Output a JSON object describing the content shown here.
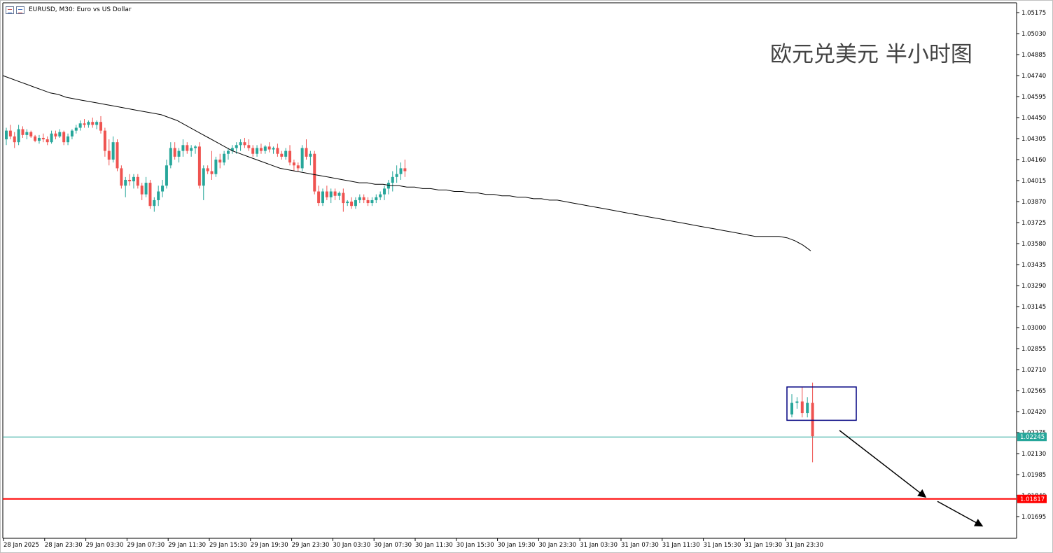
{
  "header": {
    "symbol_text": "EURUSD, M30:  Euro vs US Dollar"
  },
  "annotation": {
    "title": "欧元兑美元 半小时图"
  },
  "chart_data": {
    "type": "candlestick",
    "symbol": "EURUSD",
    "timeframe": "M30",
    "description": "Euro vs US Dollar",
    "colors": {
      "bull": "#26a69a",
      "bear": "#ef5350",
      "moving_average": "#000000",
      "current_price_line": "#26a69a",
      "support_line": "#ff0000",
      "box": "#000080",
      "arrows": "#000000",
      "grid": "none"
    },
    "y_axis": {
      "range": [
        1.0155,
        1.0525
      ],
      "ticks": [
        "1.05175",
        "1.05030",
        "1.04885",
        "1.04740",
        "1.04595",
        "1.04450",
        "1.04305",
        "1.04160",
        "1.04015",
        "1.03870",
        "1.03725",
        "1.03580",
        "1.03435",
        "1.03290",
        "1.03145",
        "1.03000",
        "1.02855",
        "1.02710",
        "1.02565",
        "1.02420",
        "1.02275",
        "1.02130",
        "1.01985",
        "1.01840",
        "1.01695"
      ]
    },
    "x_axis": {
      "ticks": [
        "28 Jan 2025",
        "28 Jan 23:30",
        "29 Jan 03:30",
        "29 Jan 07:30",
        "29 Jan 11:30",
        "29 Jan 15:30",
        "29 Jan 19:30",
        "29 Jan 23:30",
        "30 Jan 03:30",
        "30 Jan 07:30",
        "30 Jan 11:30",
        "30 Jan 15:30",
        "30 Jan 19:30",
        "30 Jan 23:30",
        "31 Jan 03:30",
        "31 Jan 07:30",
        "31 Jan 11:30",
        "31 Jan 15:30",
        "31 Jan 19:30",
        "31 Jan 23:30"
      ]
    },
    "price_labels": {
      "current": "1.02245",
      "support": "1.01817"
    },
    "current_price": 1.02245,
    "support_level": 1.01817,
    "moving_average": [
      1.0474,
      1.0472,
      1.047,
      1.0468,
      1.0466,
      1.0464,
      1.0462,
      1.0461,
      1.0459,
      1.0458,
      1.0457,
      1.0456,
      1.0455,
      1.0454,
      1.0453,
      1.0452,
      1.0451,
      1.045,
      1.0449,
      1.0448,
      1.0447,
      1.0445,
      1.0443,
      1.044,
      1.0437,
      1.0434,
      1.0431,
      1.0428,
      1.0425,
      1.0422,
      1.042,
      1.0418,
      1.0416,
      1.0414,
      1.0412,
      1.041,
      1.0409,
      1.0408,
      1.0407,
      1.0406,
      1.0405,
      1.0404,
      1.0403,
      1.0402,
      1.0401,
      1.04,
      1.04,
      1.0399,
      1.0399,
      1.0398,
      1.0398,
      1.0397,
      1.0397,
      1.0396,
      1.0396,
      1.0395,
      1.0395,
      1.0394,
      1.0394,
      1.0393,
      1.0393,
      1.0392,
      1.0392,
      1.0391,
      1.0391,
      1.039,
      1.039,
      1.0389,
      1.0389,
      1.0388,
      1.0388,
      1.0387,
      1.0386,
      1.0385,
      1.0384,
      1.0383,
      1.0382,
      1.0381,
      1.038,
      1.0379,
      1.0378,
      1.0377,
      1.0376,
      1.0375,
      1.0374,
      1.0373,
      1.0372,
      1.0371,
      1.037,
      1.0369,
      1.0368,
      1.0367,
      1.0366,
      1.0365,
      1.0364,
      1.0363,
      1.0363,
      1.0363,
      1.0363,
      1.0362,
      1.036,
      1.0357,
      1.0353
    ],
    "candles": [
      {
        "o": 1.043,
        "h": 1.0438,
        "l": 1.0426,
        "c": 1.0436
      },
      {
        "o": 1.0436,
        "h": 1.044,
        "l": 1.043,
        "c": 1.0432
      },
      {
        "o": 1.0432,
        "h": 1.0435,
        "l": 1.0424,
        "c": 1.0428
      },
      {
        "o": 1.0428,
        "h": 1.044,
        "l": 1.0426,
        "c": 1.0437
      },
      {
        "o": 1.0437,
        "h": 1.0439,
        "l": 1.0431,
        "c": 1.0433
      },
      {
        "o": 1.0433,
        "h": 1.0437,
        "l": 1.043,
        "c": 1.0435
      },
      {
        "o": 1.0435,
        "h": 1.0436,
        "l": 1.0431,
        "c": 1.0432
      },
      {
        "o": 1.0432,
        "h": 1.0433,
        "l": 1.0428,
        "c": 1.0429
      },
      {
        "o": 1.0429,
        "h": 1.0433,
        "l": 1.0427,
        "c": 1.0431
      },
      {
        "o": 1.0431,
        "h": 1.0434,
        "l": 1.0428,
        "c": 1.043
      },
      {
        "o": 1.043,
        "h": 1.0432,
        "l": 1.0426,
        "c": 1.0428
      },
      {
        "o": 1.0428,
        "h": 1.0436,
        "l": 1.0427,
        "c": 1.0434
      },
      {
        "o": 1.0434,
        "h": 1.0436,
        "l": 1.043,
        "c": 1.0432
      },
      {
        "o": 1.0432,
        "h": 1.0437,
        "l": 1.0431,
        "c": 1.0435
      },
      {
        "o": 1.0435,
        "h": 1.0436,
        "l": 1.0426,
        "c": 1.0428
      },
      {
        "o": 1.0428,
        "h": 1.0434,
        "l": 1.0426,
        "c": 1.0432
      },
      {
        "o": 1.0432,
        "h": 1.0437,
        "l": 1.043,
        "c": 1.0436
      },
      {
        "o": 1.0436,
        "h": 1.044,
        "l": 1.0434,
        "c": 1.0438
      },
      {
        "o": 1.0438,
        "h": 1.0443,
        "l": 1.0436,
        "c": 1.0441
      },
      {
        "o": 1.0441,
        "h": 1.0444,
        "l": 1.0438,
        "c": 1.044
      },
      {
        "o": 1.044,
        "h": 1.0443,
        "l": 1.0438,
        "c": 1.0442
      },
      {
        "o": 1.0442,
        "h": 1.0445,
        "l": 1.0438,
        "c": 1.044
      },
      {
        "o": 1.044,
        "h": 1.0443,
        "l": 1.0437,
        "c": 1.0442
      },
      {
        "o": 1.0442,
        "h": 1.0446,
        "l": 1.0434,
        "c": 1.0436
      },
      {
        "o": 1.0436,
        "h": 1.0438,
        "l": 1.0418,
        "c": 1.0422
      },
      {
        "o": 1.0422,
        "h": 1.043,
        "l": 1.0412,
        "c": 1.0416
      },
      {
        "o": 1.0416,
        "h": 1.0432,
        "l": 1.0414,
        "c": 1.0428
      },
      {
        "o": 1.0428,
        "h": 1.043,
        "l": 1.0408,
        "c": 1.041
      },
      {
        "o": 1.041,
        "h": 1.0412,
        "l": 1.0396,
        "c": 1.0398
      },
      {
        "o": 1.0398,
        "h": 1.0404,
        "l": 1.039,
        "c": 1.0402
      },
      {
        "o": 1.0402,
        "h": 1.0406,
        "l": 1.0398,
        "c": 1.0401
      },
      {
        "o": 1.0401,
        "h": 1.0406,
        "l": 1.0396,
        "c": 1.0404
      },
      {
        "o": 1.0404,
        "h": 1.0406,
        "l": 1.0396,
        "c": 1.0398
      },
      {
        "o": 1.0398,
        "h": 1.04,
        "l": 1.0388,
        "c": 1.0392
      },
      {
        "o": 1.0392,
        "h": 1.0404,
        "l": 1.039,
        "c": 1.04
      },
      {
        "o": 1.04,
        "h": 1.0402,
        "l": 1.0382,
        "c": 1.0384
      },
      {
        "o": 1.0384,
        "h": 1.039,
        "l": 1.038,
        "c": 1.0388
      },
      {
        "o": 1.0388,
        "h": 1.0398,
        "l": 1.0384,
        "c": 1.0394
      },
      {
        "o": 1.0394,
        "h": 1.0402,
        "l": 1.039,
        "c": 1.0398
      },
      {
        "o": 1.0398,
        "h": 1.0416,
        "l": 1.0396,
        "c": 1.0412
      },
      {
        "o": 1.0412,
        "h": 1.0428,
        "l": 1.041,
        "c": 1.0424
      },
      {
        "o": 1.0424,
        "h": 1.0428,
        "l": 1.0416,
        "c": 1.0418
      },
      {
        "o": 1.0418,
        "h": 1.0424,
        "l": 1.0414,
        "c": 1.0422
      },
      {
        "o": 1.0422,
        "h": 1.043,
        "l": 1.0418,
        "c": 1.0426
      },
      {
        "o": 1.0426,
        "h": 1.0428,
        "l": 1.042,
        "c": 1.0422
      },
      {
        "o": 1.0422,
        "h": 1.0426,
        "l": 1.0418,
        "c": 1.0424
      },
      {
        "o": 1.0424,
        "h": 1.0426,
        "l": 1.042,
        "c": 1.0425
      },
      {
        "o": 1.0425,
        "h": 1.0428,
        "l": 1.0396,
        "c": 1.0398
      },
      {
        "o": 1.0398,
        "h": 1.0412,
        "l": 1.0388,
        "c": 1.041
      },
      {
        "o": 1.041,
        "h": 1.0412,
        "l": 1.0406,
        "c": 1.0408
      },
      {
        "o": 1.0408,
        "h": 1.0422,
        "l": 1.0402,
        "c": 1.0406
      },
      {
        "o": 1.0406,
        "h": 1.0418,
        "l": 1.0404,
        "c": 1.0416
      },
      {
        "o": 1.0416,
        "h": 1.042,
        "l": 1.041,
        "c": 1.0414
      },
      {
        "o": 1.0414,
        "h": 1.0422,
        "l": 1.0412,
        "c": 1.042
      },
      {
        "o": 1.042,
        "h": 1.0424,
        "l": 1.0416,
        "c": 1.0422
      },
      {
        "o": 1.0422,
        "h": 1.0426,
        "l": 1.042,
        "c": 1.0424
      },
      {
        "o": 1.0424,
        "h": 1.0428,
        "l": 1.042,
        "c": 1.0426
      },
      {
        "o": 1.0426,
        "h": 1.043,
        "l": 1.0422,
        "c": 1.0428
      },
      {
        "o": 1.0428,
        "h": 1.0431,
        "l": 1.0424,
        "c": 1.0426
      },
      {
        "o": 1.0426,
        "h": 1.043,
        "l": 1.0422,
        "c": 1.0424
      },
      {
        "o": 1.0424,
        "h": 1.0426,
        "l": 1.0418,
        "c": 1.042
      },
      {
        "o": 1.042,
        "h": 1.0426,
        "l": 1.0418,
        "c": 1.0424
      },
      {
        "o": 1.0424,
        "h": 1.0427,
        "l": 1.042,
        "c": 1.0422
      },
      {
        "o": 1.0422,
        "h": 1.0426,
        "l": 1.042,
        "c": 1.0425
      },
      {
        "o": 1.0425,
        "h": 1.0428,
        "l": 1.0421,
        "c": 1.0423
      },
      {
        "o": 1.0423,
        "h": 1.0425,
        "l": 1.042,
        "c": 1.0424
      },
      {
        "o": 1.0424,
        "h": 1.0427,
        "l": 1.0418,
        "c": 1.042
      },
      {
        "o": 1.042,
        "h": 1.0422,
        "l": 1.0416,
        "c": 1.0418
      },
      {
        "o": 1.0418,
        "h": 1.0424,
        "l": 1.0416,
        "c": 1.0422
      },
      {
        "o": 1.0422,
        "h": 1.0426,
        "l": 1.0412,
        "c": 1.0414
      },
      {
        "o": 1.0414,
        "h": 1.0416,
        "l": 1.0408,
        "c": 1.0412
      },
      {
        "o": 1.0412,
        "h": 1.0414,
        "l": 1.0408,
        "c": 1.041
      },
      {
        "o": 1.041,
        "h": 1.0426,
        "l": 1.0408,
        "c": 1.0424
      },
      {
        "o": 1.0424,
        "h": 1.043,
        "l": 1.0416,
        "c": 1.0418
      },
      {
        "o": 1.0418,
        "h": 1.0422,
        "l": 1.0412,
        "c": 1.042
      },
      {
        "o": 1.042,
        "h": 1.0422,
        "l": 1.0392,
        "c": 1.0394
      },
      {
        "o": 1.0394,
        "h": 1.0398,
        "l": 1.0384,
        "c": 1.0386
      },
      {
        "o": 1.0386,
        "h": 1.0396,
        "l": 1.0384,
        "c": 1.0394
      },
      {
        "o": 1.0394,
        "h": 1.0398,
        "l": 1.0388,
        "c": 1.039
      },
      {
        "o": 1.039,
        "h": 1.0396,
        "l": 1.0386,
        "c": 1.0394
      },
      {
        "o": 1.0394,
        "h": 1.0396,
        "l": 1.0388,
        "c": 1.0391
      },
      {
        "o": 1.0391,
        "h": 1.0394,
        "l": 1.0388,
        "c": 1.0393
      },
      {
        "o": 1.0393,
        "h": 1.0396,
        "l": 1.038,
        "c": 1.0386
      },
      {
        "o": 1.0386,
        "h": 1.0388,
        "l": 1.0384,
        "c": 1.0387
      },
      {
        "o": 1.0387,
        "h": 1.039,
        "l": 1.0382,
        "c": 1.0384
      },
      {
        "o": 1.0384,
        "h": 1.039,
        "l": 1.0382,
        "c": 1.0388
      },
      {
        "o": 1.0388,
        "h": 1.0392,
        "l": 1.0386,
        "c": 1.039
      },
      {
        "o": 1.039,
        "h": 1.0392,
        "l": 1.0386,
        "c": 1.0388
      },
      {
        "o": 1.0388,
        "h": 1.039,
        "l": 1.0384,
        "c": 1.0386
      },
      {
        "o": 1.0386,
        "h": 1.039,
        "l": 1.0384,
        "c": 1.0388
      },
      {
        "o": 1.0388,
        "h": 1.0392,
        "l": 1.0386,
        "c": 1.039
      },
      {
        "o": 1.039,
        "h": 1.0394,
        "l": 1.0388,
        "c": 1.0392
      },
      {
        "o": 1.0392,
        "h": 1.0398,
        "l": 1.0388,
        "c": 1.0396
      },
      {
        "o": 1.0396,
        "h": 1.0402,
        "l": 1.0392,
        "c": 1.04
      },
      {
        "o": 1.04,
        "h": 1.0408,
        "l": 1.0394,
        "c": 1.0404
      },
      {
        "o": 1.0404,
        "h": 1.0412,
        "l": 1.04,
        "c": 1.0406
      },
      {
        "o": 1.0406,
        "h": 1.0414,
        "l": 1.0402,
        "c": 1.041
      },
      {
        "o": 1.041,
        "h": 1.0416,
        "l": 1.0404,
        "c": 1.0408
      }
    ],
    "box_candles": [
      {
        "o": 1.024,
        "h": 1.0254,
        "l": 1.0238,
        "c": 1.0248
      },
      {
        "o": 1.0248,
        "h": 1.0252,
        "l": 1.0244,
        "c": 1.0249
      },
      {
        "o": 1.0249,
        "h": 1.0259,
        "l": 1.0238,
        "c": 1.0241
      },
      {
        "o": 1.0241,
        "h": 1.0252,
        "l": 1.0238,
        "c": 1.0248
      },
      {
        "o": 1.0248,
        "h": 1.0262,
        "l": 1.0207,
        "c": 1.0225
      }
    ],
    "box": {
      "x_start": "31 Jan 23:30",
      "price_high": 1.0259,
      "price_low": 1.0236
    },
    "projection_arrows": [
      {
        "from_price": 1.0229,
        "to_price": 1.0183
      },
      {
        "from_price": 1.018,
        "to_price": 1.0163
      }
    ]
  }
}
